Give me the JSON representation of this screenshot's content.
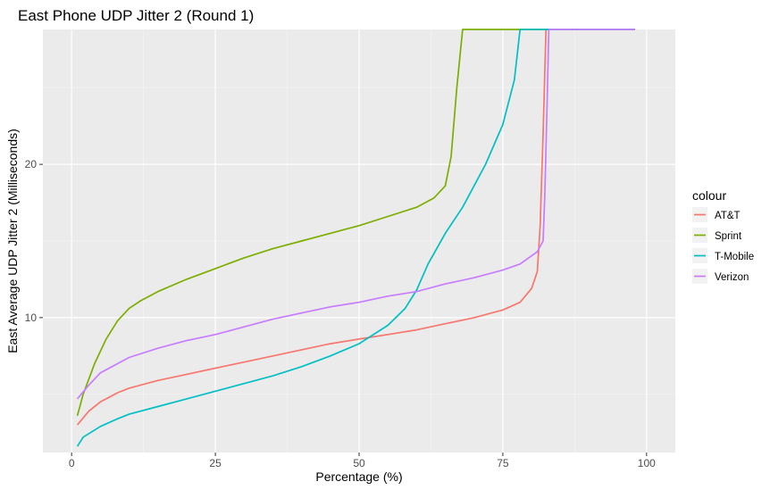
{
  "chart_data": {
    "type": "line",
    "title": "East Phone UDP Jitter 2 (Round 1)",
    "xlabel": "Percentage (%)",
    "ylabel": "East Average UDP Jitter 2 (Milliseconds)",
    "xlim": [
      -5,
      105
    ],
    "ylim": [
      1.2,
      28.8
    ],
    "x_ticks": [
      0,
      25,
      50,
      75,
      100
    ],
    "x_tick_labels": [
      "0",
      "25",
      "50",
      "75",
      "100"
    ],
    "y_ticks": [
      10,
      20
    ],
    "y_tick_labels": [
      "10",
      "20"
    ],
    "grid": true,
    "legend": {
      "title": "colour",
      "position": "right"
    },
    "series": [
      {
        "name": "AT&T",
        "color": "#F8766D",
        "points": [
          [
            1,
            3.0
          ],
          [
            3,
            3.9
          ],
          [
            5,
            4.5
          ],
          [
            8,
            5.1
          ],
          [
            10,
            5.4
          ],
          [
            15,
            5.9
          ],
          [
            20,
            6.3
          ],
          [
            25,
            6.7
          ],
          [
            30,
            7.1
          ],
          [
            35,
            7.5
          ],
          [
            40,
            7.9
          ],
          [
            45,
            8.3
          ],
          [
            50,
            8.6
          ],
          [
            55,
            8.9
          ],
          [
            60,
            9.2
          ],
          [
            65,
            9.6
          ],
          [
            70,
            10.0
          ],
          [
            75,
            10.5
          ],
          [
            78,
            11.0
          ],
          [
            80,
            11.9
          ],
          [
            81,
            13.0
          ],
          [
            81.5,
            16.0
          ],
          [
            82,
            22.0
          ],
          [
            82.5,
            28.8
          ],
          [
            98,
            28.8
          ]
        ]
      },
      {
        "name": "Sprint",
        "color": "#7CAE00",
        "points": [
          [
            1,
            3.6
          ],
          [
            2,
            5.0
          ],
          [
            4,
            7.0
          ],
          [
            6,
            8.6
          ],
          [
            8,
            9.8
          ],
          [
            10,
            10.6
          ],
          [
            12,
            11.1
          ],
          [
            15,
            11.7
          ],
          [
            20,
            12.5
          ],
          [
            25,
            13.2
          ],
          [
            30,
            13.9
          ],
          [
            35,
            14.5
          ],
          [
            40,
            15.0
          ],
          [
            45,
            15.5
          ],
          [
            50,
            16.0
          ],
          [
            55,
            16.6
          ],
          [
            60,
            17.2
          ],
          [
            63,
            17.8
          ],
          [
            65,
            18.6
          ],
          [
            66,
            20.5
          ],
          [
            67,
            25.0
          ],
          [
            68,
            28.8
          ],
          [
            98,
            28.8
          ]
        ]
      },
      {
        "name": "T-Mobile",
        "color": "#00BFC4",
        "points": [
          [
            1,
            1.6
          ],
          [
            2,
            2.2
          ],
          [
            5,
            2.9
          ],
          [
            8,
            3.4
          ],
          [
            10,
            3.7
          ],
          [
            15,
            4.2
          ],
          [
            20,
            4.7
          ],
          [
            25,
            5.2
          ],
          [
            30,
            5.7
          ],
          [
            35,
            6.2
          ],
          [
            40,
            6.8
          ],
          [
            45,
            7.5
          ],
          [
            50,
            8.3
          ],
          [
            55,
            9.5
          ],
          [
            58,
            10.6
          ],
          [
            60,
            11.8
          ],
          [
            62,
            13.5
          ],
          [
            65,
            15.5
          ],
          [
            68,
            17.2
          ],
          [
            72,
            20.0
          ],
          [
            75,
            22.6
          ],
          [
            77,
            25.5
          ],
          [
            78,
            28.8
          ],
          [
            98,
            28.8
          ]
        ]
      },
      {
        "name": "Verizon",
        "color": "#C77CFF",
        "points": [
          [
            1,
            4.7
          ],
          [
            3,
            5.6
          ],
          [
            5,
            6.4
          ],
          [
            8,
            7.0
          ],
          [
            10,
            7.4
          ],
          [
            15,
            8.0
          ],
          [
            20,
            8.5
          ],
          [
            25,
            8.9
          ],
          [
            30,
            9.4
          ],
          [
            35,
            9.9
          ],
          [
            40,
            10.3
          ],
          [
            45,
            10.7
          ],
          [
            50,
            11.0
          ],
          [
            55,
            11.4
          ],
          [
            60,
            11.7
          ],
          [
            65,
            12.2
          ],
          [
            70,
            12.6
          ],
          [
            75,
            13.1
          ],
          [
            78,
            13.5
          ],
          [
            81,
            14.3
          ],
          [
            82,
            15.0
          ],
          [
            82.3,
            18.0
          ],
          [
            82.7,
            24.0
          ],
          [
            83,
            28.8
          ],
          [
            98,
            28.8
          ]
        ]
      }
    ]
  }
}
